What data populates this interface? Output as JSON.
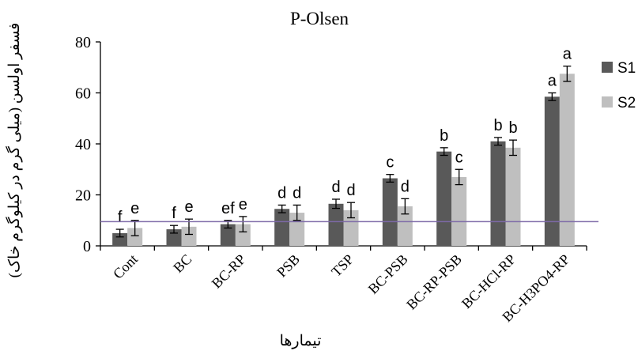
{
  "chart_data": {
    "type": "bar",
    "title": "P-Olsen",
    "ylabel": "فسفر اولسن (میلی گرم در کیلوگرم خاک)",
    "xlabel": "تیمارها",
    "categories": [
      "Cont",
      "BC",
      "BC-RP",
      "PSB",
      "TSP",
      "BC-PSB",
      "BC-RP-PSB",
      "BC-HCl-RP",
      "BC-H3PO4-RP"
    ],
    "yticks": [
      "0",
      "20",
      "40",
      "60",
      "80"
    ],
    "ylim": [
      0,
      80
    ],
    "grid": false,
    "legend_position": "right",
    "series": [
      {
        "name": "S1",
        "color": "#595959",
        "values": [
          5,
          6.5,
          8.5,
          14.5,
          16.5,
          26.5,
          37,
          41,
          58.5
        ],
        "errors": [
          1.5,
          1.5,
          1.5,
          1.5,
          1.8,
          1.5,
          1.5,
          1.5,
          1.5
        ],
        "letters": [
          "f",
          "f",
          "ef",
          "d",
          "d",
          "c",
          "b",
          "b",
          "a"
        ]
      },
      {
        "name": "S2",
        "color": "#bfbfbf",
        "values": [
          7,
          7.5,
          8.5,
          13,
          14,
          15.5,
          27,
          38.5,
          67.5
        ],
        "errors": [
          3,
          3,
          3,
          3,
          3,
          3,
          3,
          3,
          3
        ],
        "letters": [
          "e",
          "e",
          "e",
          "d",
          "d",
          "d",
          "c",
          "b",
          "a"
        ]
      }
    ],
    "reference_line": {
      "value": 9.5,
      "color": "#7e6aa8"
    }
  }
}
